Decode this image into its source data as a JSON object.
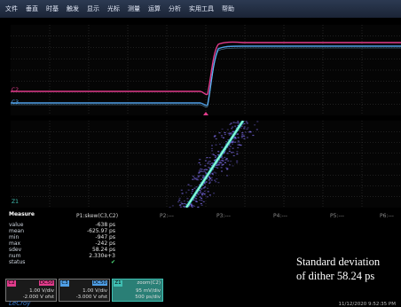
{
  "menu": [
    "文件",
    "垂直",
    "时基",
    "触发",
    "显示",
    "光标",
    "测量",
    "运算",
    "分析",
    "实用工具",
    "帮助"
  ],
  "trace_labels": {
    "c3": "C3",
    "c2": "C2",
    "zoom": "Z1"
  },
  "measure": {
    "title": "Measure",
    "params": [
      "P1:skew(C3,C2)",
      "P2:---",
      "P3:---",
      "P4:---",
      "P5:---",
      "P6:---"
    ],
    "rows": [
      {
        "label": "value",
        "value": "-638 ps"
      },
      {
        "label": "mean",
        "value": "-625.97 ps"
      },
      {
        "label": "min",
        "value": "-947 ps"
      },
      {
        "label": "max",
        "value": "-242 ps"
      },
      {
        "label": "sdev",
        "value": "58.24 ps"
      },
      {
        "label": "num",
        "value": "2.330e+3"
      },
      {
        "label": "status",
        "value": "✔"
      }
    ]
  },
  "annotation": {
    "line1": "Standard deviation",
    "line2": "of dither 58.24 ps"
  },
  "channels": [
    {
      "tag": "C2",
      "coupling": "DC50",
      "scale": "1.00 V/div",
      "offset": "-2.000 V ofst",
      "color": "#e23c8c"
    },
    {
      "tag": "C3",
      "coupling": "DC50",
      "scale": "1.00 V/div",
      "offset": "-3.000 V ofst",
      "color": "#4f9fe6"
    },
    {
      "tag": "Z1",
      "coupling": "zoom(C2)",
      "scale": "95 mV/div",
      "offset": "500 ps/div",
      "color": "#3fbfb2"
    }
  ],
  "brand": "LeCroy",
  "timestamp": "11/12/2020 9:52:35 PM",
  "colors": {
    "c2": "#e23c8c",
    "c3": "#4f9fe6",
    "zoom": "#3fd9c6",
    "persistence": "#7a6ae6",
    "grid": "#3a3a3a"
  }
}
